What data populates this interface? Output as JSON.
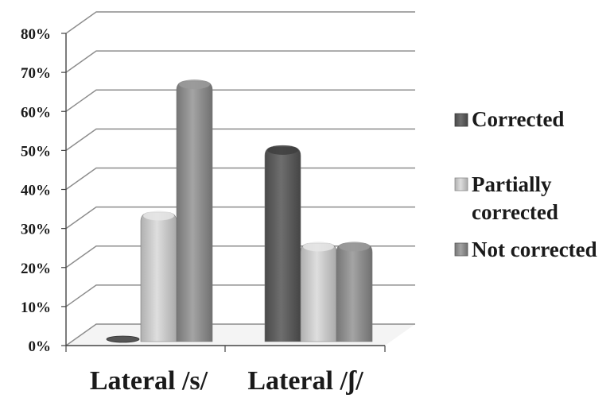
{
  "chart_data": {
    "type": "bar",
    "title": "",
    "xlabel": "",
    "ylabel": "",
    "categories": [
      "Lateral /s/",
      "Lateral /ʃ/"
    ],
    "series": [
      {
        "name": "Corrected",
        "values": [
          0,
          50
        ],
        "color": "#606060"
      },
      {
        "name": "Partially corrected",
        "values": [
          33,
          25
        ],
        "color": "#c8c8c8"
      },
      {
        "name": "Not corrected",
        "values": [
          67,
          25
        ],
        "color": "#8e8e8e"
      }
    ],
    "ylim": [
      0,
      80
    ],
    "yticks": [
      "0%",
      "10%",
      "20%",
      "30%",
      "40%",
      "50%",
      "60%",
      "70%",
      "80%"
    ],
    "grid": true,
    "legend_position": "right",
    "legend": [
      "Corrected",
      "Partially",
      "corrected",
      "Not corrected"
    ]
  }
}
